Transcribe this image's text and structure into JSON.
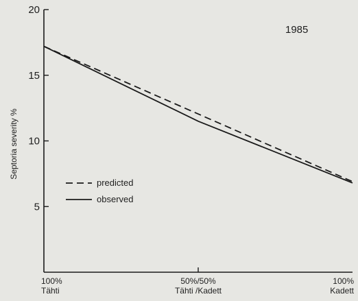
{
  "chart_data": {
    "type": "line",
    "title": "1985",
    "ylabel": "Septoria severity %",
    "xlabel": "",
    "ylim": [
      0,
      20
    ],
    "yticks": [
      5,
      10,
      15,
      20
    ],
    "grid": false,
    "legend_position": "left-middle",
    "categories": [
      {
        "line1": "100%",
        "line2": "Tähti"
      },
      {
        "line1": "50%/50%",
        "line2": "Tähti /Kadett"
      },
      {
        "line1": "100%",
        "line2": "Kadett"
      }
    ],
    "x": [
      0,
      50,
      100
    ],
    "series": [
      {
        "name": "predicted",
        "style": "dashed",
        "x": [
          0,
          100
        ],
        "values": [
          17.2,
          6.9
        ]
      },
      {
        "name": "observed",
        "style": "solid",
        "x": [
          0,
          50,
          100
        ],
        "values": [
          17.2,
          11.5,
          6.8
        ]
      }
    ]
  }
}
